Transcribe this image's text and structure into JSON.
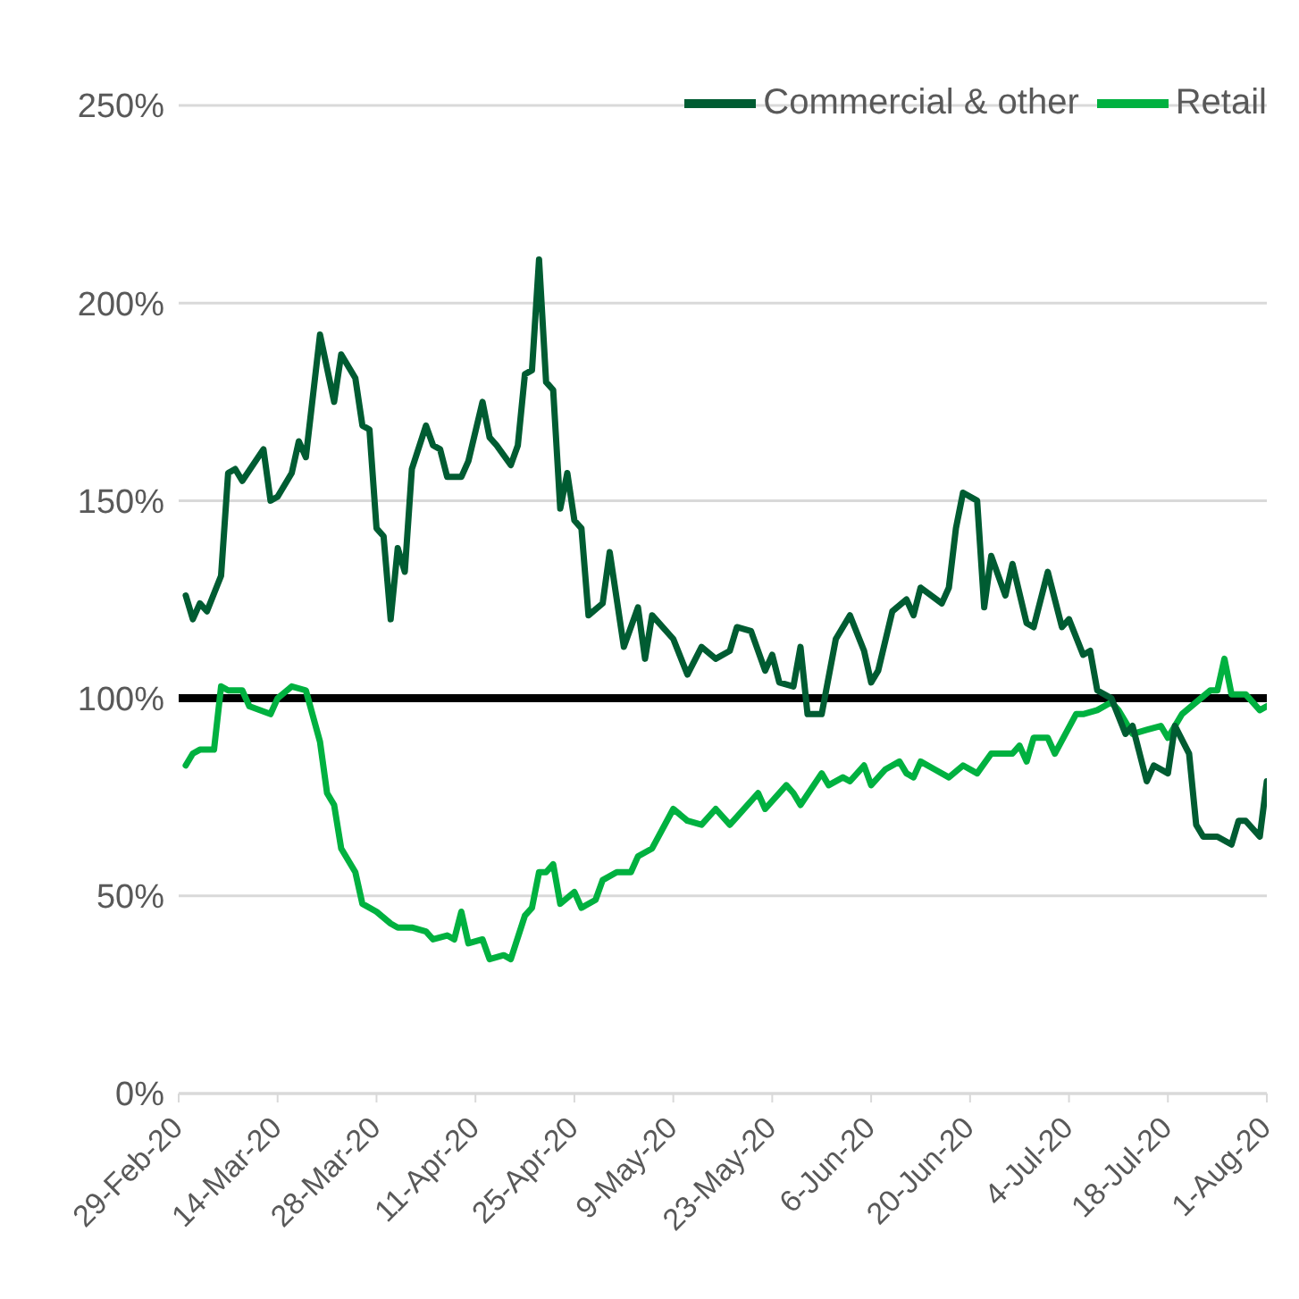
{
  "chart_data": {
    "type": "line",
    "xlim": [
      "2020-02-29",
      "2020-08-01"
    ],
    "xticks": [
      {
        "value": "2020-02-29",
        "label": "29-Feb-20"
      },
      {
        "value": "2020-03-14",
        "label": "14-Mar-20"
      },
      {
        "value": "2020-03-28",
        "label": "28-Mar-20"
      },
      {
        "value": "2020-04-11",
        "label": "11-Apr-20"
      },
      {
        "value": "2020-04-25",
        "label": "25-Apr-20"
      },
      {
        "value": "2020-05-09",
        "label": "9-May-20"
      },
      {
        "value": "2020-05-23",
        "label": "23-May-20"
      },
      {
        "value": "2020-06-06",
        "label": "6-Jun-20"
      },
      {
        "value": "2020-06-20",
        "label": "20-Jun-20"
      },
      {
        "value": "2020-07-04",
        "label": "4-Jul-20"
      },
      {
        "value": "2020-07-18",
        "label": "18-Jul-20"
      },
      {
        "value": "2020-08-01",
        "label": "1-Aug-20"
      }
    ],
    "ylim": [
      0,
      250
    ],
    "yticks": [
      {
        "value": 0,
        "label": "0%"
      },
      {
        "value": 50,
        "label": "50%"
      },
      {
        "value": 100,
        "label": "100%"
      },
      {
        "value": 150,
        "label": "150%"
      },
      {
        "value": 200,
        "label": "200%"
      },
      {
        "value": 250,
        "label": "250%"
      }
    ],
    "grid": "y",
    "legend": "top right",
    "marker": "none",
    "line_style": "solid",
    "ref_lines": [
      {
        "axis": "y",
        "value": 100,
        "color": "#000000"
      }
    ],
    "series": [
      {
        "name": "Retail",
        "color": "#00b140",
        "x": [
          "2020-03-01",
          "2020-03-02",
          "2020-03-03",
          "2020-03-05",
          "2020-03-06",
          "2020-03-07",
          "2020-03-09",
          "2020-03-10",
          "2020-03-13",
          "2020-03-14",
          "2020-03-16",
          "2020-03-18",
          "2020-03-20",
          "2020-03-21",
          "2020-03-22",
          "2020-03-23",
          "2020-03-25",
          "2020-03-26",
          "2020-03-28",
          "2020-03-30",
          "2020-03-31",
          "2020-04-02",
          "2020-04-04",
          "2020-04-05",
          "2020-04-07",
          "2020-04-08",
          "2020-04-09",
          "2020-04-10",
          "2020-04-12",
          "2020-04-13",
          "2020-04-15",
          "2020-04-16",
          "2020-04-18",
          "2020-04-19",
          "2020-04-20",
          "2020-04-21",
          "2020-04-22",
          "2020-04-23",
          "2020-04-25",
          "2020-04-26",
          "2020-04-28",
          "2020-04-29",
          "2020-05-01",
          "2020-05-03",
          "2020-05-04",
          "2020-05-06",
          "2020-05-09",
          "2020-05-11",
          "2020-05-13",
          "2020-05-15",
          "2020-05-17",
          "2020-05-18",
          "2020-05-21",
          "2020-05-22",
          "2020-05-25",
          "2020-05-26",
          "2020-05-27",
          "2020-05-30",
          "2020-05-31",
          "2020-06-02",
          "2020-06-03",
          "2020-06-05",
          "2020-06-06",
          "2020-06-08",
          "2020-06-10",
          "2020-06-11",
          "2020-06-12",
          "2020-06-13",
          "2020-06-15",
          "2020-06-17",
          "2020-06-19",
          "2020-06-21",
          "2020-06-23",
          "2020-06-26",
          "2020-06-27",
          "2020-06-28",
          "2020-06-29",
          "2020-07-01",
          "2020-07-02",
          "2020-07-05",
          "2020-07-06",
          "2020-07-08",
          "2020-07-10",
          "2020-07-11",
          "2020-07-13",
          "2020-07-15",
          "2020-07-17",
          "2020-07-18",
          "2020-07-20",
          "2020-07-22",
          "2020-07-24",
          "2020-07-25",
          "2020-07-26",
          "2020-07-27",
          "2020-07-29",
          "2020-07-31",
          "2020-08-01"
        ],
        "values": [
          83,
          86,
          87,
          87,
          103,
          102,
          102,
          98,
          96,
          100,
          103,
          102,
          89,
          76,
          73,
          62,
          56,
          48,
          46,
          43,
          42,
          42,
          41,
          39,
          40,
          39,
          46,
          38,
          39,
          34,
          35,
          34,
          45,
          47,
          56,
          56,
          58,
          48,
          51,
          47,
          49,
          54,
          56,
          56,
          60,
          62,
          72,
          69,
          68,
          72,
          68,
          70,
          76,
          72,
          78,
          76,
          73,
          81,
          78,
          80,
          79,
          83,
          78,
          82,
          84,
          81,
          80,
          84,
          82,
          80,
          83,
          81,
          86,
          86,
          88,
          84,
          90,
          90,
          86,
          96,
          96,
          97,
          99,
          97,
          91,
          92,
          93,
          90,
          96,
          99,
          102,
          102,
          110,
          101,
          101,
          97,
          98
        ]
      },
      {
        "name": "Commercial & other",
        "color": "#005c32",
        "x": [
          "2020-03-01",
          "2020-03-02",
          "2020-03-03",
          "2020-03-04",
          "2020-03-06",
          "2020-03-07",
          "2020-03-08",
          "2020-03-09",
          "2020-03-12",
          "2020-03-13",
          "2020-03-14",
          "2020-03-16",
          "2020-03-17",
          "2020-03-18",
          "2020-03-20",
          "2020-03-22",
          "2020-03-23",
          "2020-03-25",
          "2020-03-26",
          "2020-03-27",
          "2020-03-28",
          "2020-03-29",
          "2020-03-30",
          "2020-03-31",
          "2020-04-01",
          "2020-04-02",
          "2020-04-04",
          "2020-04-05",
          "2020-04-06",
          "2020-04-07",
          "2020-04-09",
          "2020-04-10",
          "2020-04-12",
          "2020-04-13",
          "2020-04-14",
          "2020-04-16",
          "2020-04-17",
          "2020-04-18",
          "2020-04-19",
          "2020-04-20",
          "2020-04-21",
          "2020-04-22",
          "2020-04-23",
          "2020-04-24",
          "2020-04-25",
          "2020-04-26",
          "2020-04-27",
          "2020-04-29",
          "2020-04-30",
          "2020-05-02",
          "2020-05-04",
          "2020-05-05",
          "2020-05-06",
          "2020-05-09",
          "2020-05-11",
          "2020-05-13",
          "2020-05-15",
          "2020-05-17",
          "2020-05-18",
          "2020-05-20",
          "2020-05-22",
          "2020-05-23",
          "2020-05-24",
          "2020-05-26",
          "2020-05-27",
          "2020-05-28",
          "2020-05-30",
          "2020-06-01",
          "2020-06-03",
          "2020-06-05",
          "2020-06-06",
          "2020-06-07",
          "2020-06-09",
          "2020-06-11",
          "2020-06-12",
          "2020-06-13",
          "2020-06-16",
          "2020-06-17",
          "2020-06-18",
          "2020-06-19",
          "2020-06-21",
          "2020-06-22",
          "2020-06-23",
          "2020-06-25",
          "2020-06-26",
          "2020-06-28",
          "2020-06-29",
          "2020-07-01",
          "2020-07-03",
          "2020-07-04",
          "2020-07-06",
          "2020-07-07",
          "2020-07-08",
          "2020-07-10",
          "2020-07-12",
          "2020-07-13",
          "2020-07-15",
          "2020-07-16",
          "2020-07-18",
          "2020-07-19",
          "2020-07-21",
          "2020-07-22",
          "2020-07-23",
          "2020-07-25",
          "2020-07-27",
          "2020-07-28",
          "2020-07-29",
          "2020-07-31",
          "2020-08-01"
        ],
        "values": [
          126,
          120,
          124,
          122,
          131,
          157,
          158,
          155,
          163,
          150,
          151,
          157,
          165,
          161,
          192,
          175,
          187,
          181,
          169,
          168,
          143,
          141,
          120,
          138,
          132,
          158,
          169,
          164,
          163,
          156,
          156,
          160,
          175,
          166,
          164,
          159,
          164,
          182,
          183,
          211,
          180,
          178,
          148,
          157,
          145,
          143,
          121,
          124,
          137,
          113,
          123,
          110,
          121,
          115,
          106,
          113,
          110,
          112,
          118,
          117,
          107,
          111,
          104,
          103,
          113,
          96,
          96,
          115,
          121,
          112,
          104,
          107,
          122,
          125,
          121,
          128,
          124,
          128,
          143,
          152,
          150,
          123,
          136,
          126,
          134,
          119,
          118,
          132,
          118,
          120,
          111,
          112,
          102,
          100,
          91,
          93,
          79,
          83,
          81,
          93,
          86,
          68,
          65,
          65,
          63,
          69,
          69,
          65,
          79
        ]
      }
    ]
  }
}
